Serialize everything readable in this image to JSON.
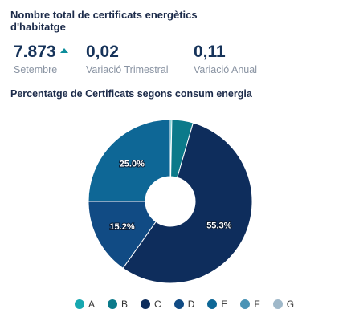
{
  "header": {
    "title": "Nombre total de certificats energètics d'habitatge"
  },
  "kpis": [
    {
      "value": "7.873",
      "label": "Setembre",
      "trend": "up"
    },
    {
      "value": "0,02",
      "label": "Variació Trimestral"
    },
    {
      "value": "0,11",
      "label": "Variació Anual"
    }
  ],
  "colors": {
    "trend_up": "#0d8d9b"
  },
  "chart_data": {
    "type": "pie",
    "title": "Percentatge de Certificats segons consum energia",
    "hole": true,
    "categories": [
      "A",
      "B",
      "C",
      "D",
      "E",
      "F",
      "G"
    ],
    "values": [
      0.3,
      4.2,
      55.3,
      15.2,
      25.0,
      0,
      0
    ],
    "data_labels": [
      "",
      "",
      "55.3%",
      "15.2%",
      "25.0%",
      "",
      ""
    ],
    "colors": [
      "#17a8b0",
      "#0b7a8a",
      "#0e2d5c",
      "#114b84",
      "#0e6796",
      "#4a93b5",
      "#9fb8c9"
    ],
    "legend": "bottom"
  }
}
